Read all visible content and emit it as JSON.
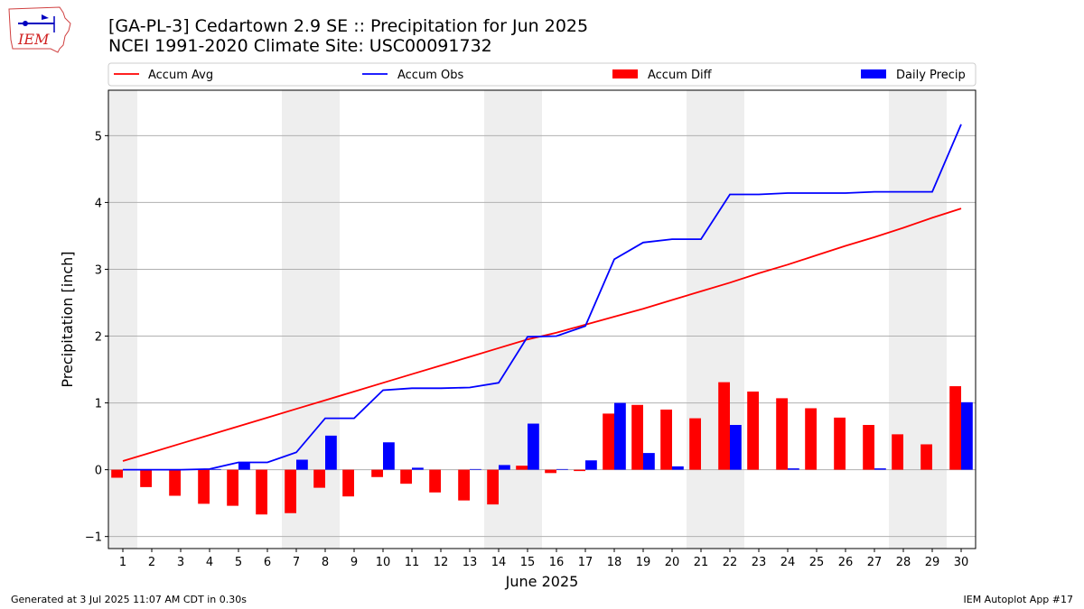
{
  "header": {
    "title": "[GA-PL-3] Cedartown 2.9 SE :: Precipitation for Jun 2025",
    "subtitle": "NCEI 1991-2020 Climate Site: USC00091732",
    "logo_text": "IEM"
  },
  "footer": {
    "left": "Generated at 3 Jul 2025 11:07 AM CDT in 0.30s",
    "right": "IEM Autoplot App #17"
  },
  "colors": {
    "accum_avg": "#ff0000",
    "accum_obs": "#0000ff",
    "accum_diff": "#ff0000",
    "daily_precip": "#0000ff",
    "weekend_shade": "#eeeeee",
    "grid": "#b0b0b0"
  },
  "chart_data": {
    "type": "bar",
    "xlabel": "June 2025",
    "ylabel": "Precipitation [inch]",
    "ylim": [
      -1.18,
      5.68
    ],
    "yticks": [
      -1,
      0,
      1,
      2,
      3,
      4,
      5
    ],
    "grid": "horizontal",
    "legend_position": "top",
    "categories": [
      "1",
      "2",
      "3",
      "4",
      "5",
      "6",
      "7",
      "8",
      "9",
      "10",
      "11",
      "12",
      "13",
      "14",
      "15",
      "16",
      "17",
      "18",
      "19",
      "20",
      "21",
      "22",
      "23",
      "24",
      "25",
      "26",
      "27",
      "28",
      "29",
      "30"
    ],
    "weekend_days": [
      1,
      7,
      8,
      14,
      15,
      21,
      22,
      28,
      29
    ],
    "series": [
      {
        "name": "Accum Avg",
        "kind": "line",
        "values": [
          0.13,
          0.26,
          0.39,
          0.52,
          0.65,
          0.78,
          0.91,
          1.04,
          1.17,
          1.3,
          1.43,
          1.56,
          1.69,
          1.82,
          1.95,
          2.05,
          2.17,
          2.29,
          2.41,
          2.54,
          2.67,
          2.8,
          2.94,
          3.07,
          3.21,
          3.35,
          3.48,
          3.62,
          3.77,
          3.91
        ]
      },
      {
        "name": "Accum Obs",
        "kind": "line",
        "values": [
          0.0,
          0.0,
          0.0,
          0.01,
          0.11,
          0.11,
          0.26,
          0.77,
          0.77,
          1.19,
          1.22,
          1.22,
          1.23,
          1.3,
          1.99,
          2.0,
          2.15,
          3.15,
          3.4,
          3.45,
          3.45,
          4.12,
          4.12,
          4.14,
          4.14,
          4.14,
          4.16,
          4.16,
          4.16,
          5.17
        ]
      },
      {
        "name": "Accum Diff",
        "kind": "bar",
        "values": [
          -0.12,
          -0.26,
          -0.39,
          -0.51,
          -0.54,
          -0.67,
          -0.65,
          -0.27,
          -0.4,
          -0.11,
          -0.21,
          -0.34,
          -0.46,
          -0.52,
          0.06,
          -0.05,
          -0.02,
          0.84,
          0.97,
          0.9,
          0.77,
          1.31,
          1.17,
          1.07,
          0.92,
          0.78,
          0.67,
          0.53,
          0.38,
          1.25
        ]
      },
      {
        "name": "Daily Precip",
        "kind": "bar",
        "values": [
          0.0,
          0.0,
          0.0,
          0.01,
          0.11,
          0.0,
          0.15,
          0.51,
          0.0,
          0.41,
          0.03,
          0.0,
          0.01,
          0.07,
          0.69,
          0.01,
          0.14,
          1.0,
          0.25,
          0.05,
          0.0,
          0.67,
          0.0,
          0.02,
          0.0,
          0.0,
          0.02,
          0.0,
          0.0,
          1.01
        ]
      }
    ]
  }
}
